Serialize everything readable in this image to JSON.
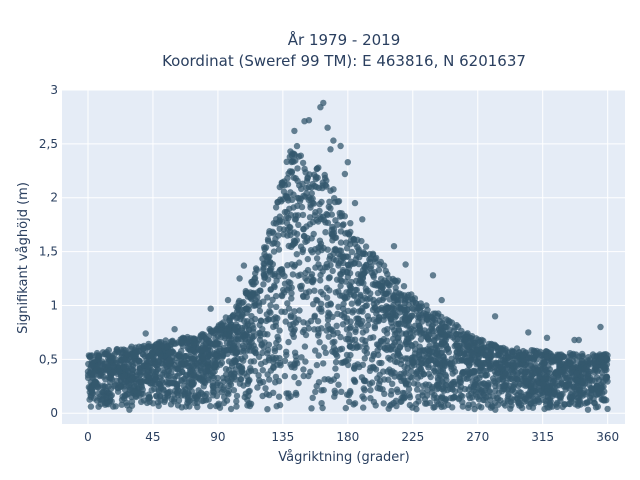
{
  "chart_data": {
    "type": "scatter",
    "title_line1": "År 1979 - 2019",
    "title_line2": "Koordinat (Sweref 99 TM): E 463816, N 6201637",
    "xlabel": "Vågriktning (grader)",
    "ylabel": "Signifikant våghöjd (m)",
    "xlim": [
      -18,
      372
    ],
    "ylim": [
      -0.1,
      3.0
    ],
    "x_ticks": [
      0,
      45,
      90,
      135,
      180,
      225,
      270,
      315,
      360
    ],
    "x_tick_labels": [
      "0",
      "45",
      "90",
      "135",
      "180",
      "225",
      "270",
      "315",
      "360"
    ],
    "y_ticks": [
      0,
      0.5,
      1,
      1.5,
      2,
      2.5,
      3
    ],
    "y_tick_labels": [
      "0",
      "0,5",
      "1",
      "1,5",
      "2",
      "2,5",
      "3"
    ],
    "grid": true,
    "legend": "none",
    "marker_color": "#34586e",
    "plot_background": "#e5ecf6",
    "envelope": {
      "direction_deg": [
        0,
        10,
        20,
        30,
        45,
        60,
        75,
        90,
        100,
        110,
        120,
        130,
        135,
        140,
        145,
        150,
        155,
        160,
        165,
        170,
        180,
        190,
        200,
        210,
        225,
        240,
        255,
        270,
        285,
        300,
        315,
        330,
        345,
        360
      ],
      "max_height_m": [
        0.55,
        0.58,
        0.6,
        0.62,
        0.65,
        0.7,
        0.72,
        0.82,
        0.95,
        1.15,
        1.45,
        1.9,
        2.25,
        2.45,
        2.5,
        2.35,
        2.25,
        2.3,
        2.2,
        2.1,
        1.8,
        1.6,
        1.45,
        1.3,
        1.1,
        0.95,
        0.82,
        0.7,
        0.62,
        0.6,
        0.58,
        0.56,
        0.55,
        0.55
      ],
      "min_height_m": 0.03
    },
    "outliers": [
      {
        "x": 163,
        "y": 2.88
      },
      {
        "x": 161,
        "y": 2.84
      },
      {
        "x": 153,
        "y": 2.72
      },
      {
        "x": 150,
        "y": 2.71
      },
      {
        "x": 166,
        "y": 2.65
      },
      {
        "x": 143,
        "y": 2.62
      },
      {
        "x": 170,
        "y": 2.53
      },
      {
        "x": 175,
        "y": 2.48
      },
      {
        "x": 168,
        "y": 2.45
      },
      {
        "x": 180,
        "y": 2.33
      },
      {
        "x": 178,
        "y": 2.22
      },
      {
        "x": 190,
        "y": 1.8
      },
      {
        "x": 185,
        "y": 1.95
      },
      {
        "x": 212,
        "y": 1.55
      },
      {
        "x": 220,
        "y": 1.38
      },
      {
        "x": 239,
        "y": 1.28
      },
      {
        "x": 245,
        "y": 1.05
      },
      {
        "x": 97,
        "y": 1.05
      },
      {
        "x": 108,
        "y": 1.37
      },
      {
        "x": 105,
        "y": 1.25
      },
      {
        "x": 117,
        "y": 1.33
      },
      {
        "x": 85,
        "y": 0.97
      },
      {
        "x": 282,
        "y": 0.9
      },
      {
        "x": 305,
        "y": 0.75
      },
      {
        "x": 318,
        "y": 0.7
      },
      {
        "x": 337,
        "y": 0.68
      },
      {
        "x": 355,
        "y": 0.8
      },
      {
        "x": 340,
        "y": 0.68
      },
      {
        "x": 60,
        "y": 0.78
      },
      {
        "x": 40,
        "y": 0.74
      }
    ]
  }
}
